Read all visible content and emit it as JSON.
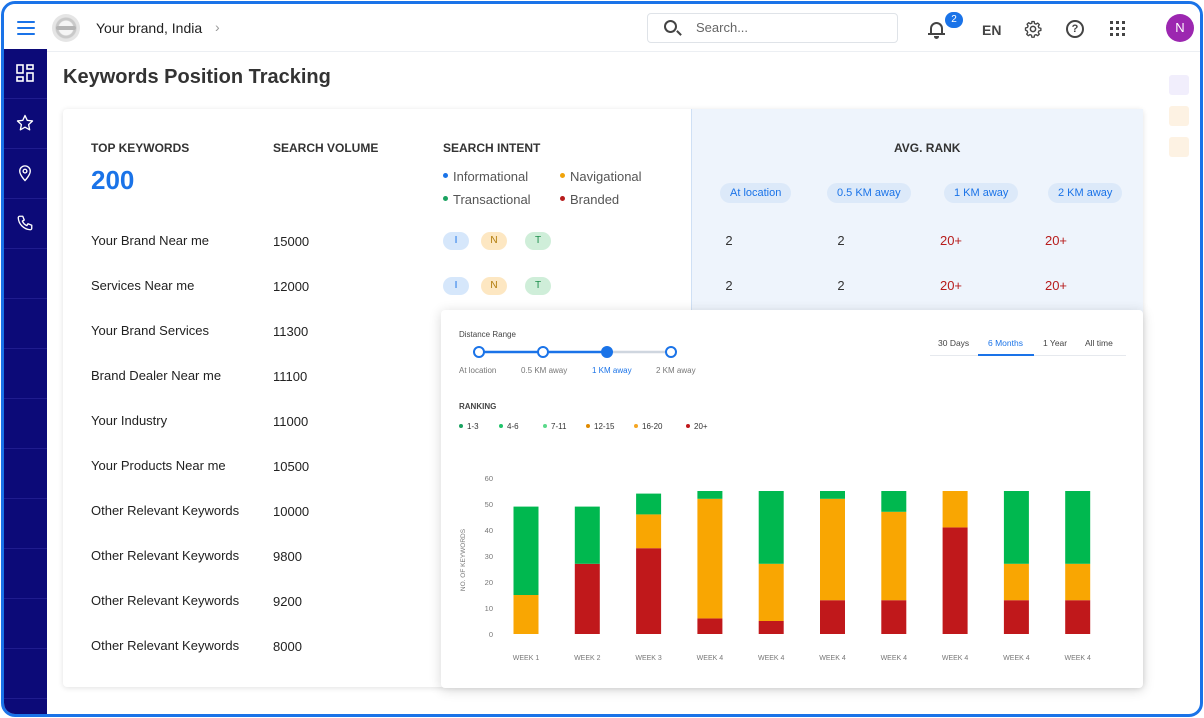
{
  "header": {
    "brand": "Your brand, India",
    "search_placeholder": "Search...",
    "notification_count": "2",
    "language": "EN",
    "avatar_initial": "N"
  },
  "sidebar": {
    "items": [
      {
        "icon": "dashboard-icon"
      },
      {
        "icon": "star-icon"
      },
      {
        "icon": "location-pin-icon"
      },
      {
        "icon": "phone-icon"
      }
    ]
  },
  "page_title": "Keywords Position Tracking",
  "summary": {
    "top_keywords_label": "TOP KEYWORDS",
    "top_keywords_count": "200",
    "search_volume_label": "SEARCH VOLUME",
    "search_intent_label": "SEARCH INTENT",
    "avg_rank_label": "AVG. RANK",
    "intent_legend": [
      {
        "label": "Informational",
        "color": "#1a73e8"
      },
      {
        "label": "Navigational",
        "color": "#f0a30a"
      },
      {
        "label": "Transactional",
        "color": "#1aa260"
      },
      {
        "label": "Branded",
        "color": "#b71c1c"
      }
    ],
    "rank_columns": [
      "At location",
      "0.5 KM away",
      "1 KM away",
      "2 KM away"
    ]
  },
  "keywords": [
    {
      "name": "Your Brand Near me",
      "volume": "15000",
      "intents": [
        "I",
        "N",
        "T"
      ],
      "ranks": [
        "2",
        "2",
        "20+",
        "20+"
      ]
    },
    {
      "name": "Services Near me",
      "volume": "12000",
      "intents": [
        "I",
        "N",
        "T"
      ],
      "ranks": [
        "2",
        "2",
        "20+",
        "20+"
      ]
    },
    {
      "name": "Your Brand Services",
      "volume": "11300"
    },
    {
      "name": "Brand Dealer Near me",
      "volume": "11100"
    },
    {
      "name": "Your Industry",
      "volume": "11000"
    },
    {
      "name": "Your Products Near me",
      "volume": "10500"
    },
    {
      "name": "Other Relevant Keywords",
      "volume": "10000"
    },
    {
      "name": "Other Relevant Keywords",
      "volume": "9800"
    },
    {
      "name": "Other Relevant Keywords",
      "volume": "9200"
    },
    {
      "name": "Other Relevant Keywords",
      "volume": "8000"
    }
  ],
  "rank_colors": {
    "good": "#333333",
    "bad": "#b71c1c"
  },
  "chart_panel": {
    "distance_range_label": "Distance Range",
    "distance_stops": [
      "At location",
      "0.5 KM away",
      "1 KM away",
      "2 KM away"
    ],
    "selected_stop_index": 2,
    "time_tabs": [
      "30 Days",
      "6 Months",
      "1 Year",
      "All time"
    ],
    "active_tab": "6 Months",
    "ranking_label": "RANKING",
    "ranking_legend": [
      {
        "label": "1-3",
        "color": "#1aa260"
      },
      {
        "label": "4-6",
        "color": "#20c46a"
      },
      {
        "label": "7-11",
        "color": "#5ad98a"
      },
      {
        "label": "12-15",
        "color": "#e08a00"
      },
      {
        "label": "16-20",
        "color": "#f5a623"
      },
      {
        "label": "20+",
        "color": "#c0181b"
      }
    ]
  },
  "chart_data": {
    "type": "bar",
    "stacked": true,
    "ylabel": "NO. OF KEYWORDS",
    "ylim": [
      0,
      60
    ],
    "yticks": [
      0,
      10,
      20,
      30,
      40,
      50,
      60
    ],
    "categories": [
      "WEEK 1",
      "WEEK 2",
      "WEEK 3",
      "WEEK 4",
      "WEEK 4",
      "WEEK 4",
      "WEEK 4",
      "WEEK 4",
      "WEEK 4",
      "WEEK 4"
    ],
    "series": [
      {
        "color": "#c0181b",
        "values": [
          0,
          27,
          33,
          6,
          5,
          13,
          13,
          41,
          13,
          13
        ]
      },
      {
        "color": "#f9a602",
        "values": [
          15,
          0,
          13,
          46,
          22,
          39,
          34,
          14,
          14,
          14
        ]
      },
      {
        "color": "#00b84f",
        "values": [
          34,
          22,
          8,
          3,
          28,
          3,
          8,
          0,
          28,
          28
        ]
      }
    ]
  }
}
